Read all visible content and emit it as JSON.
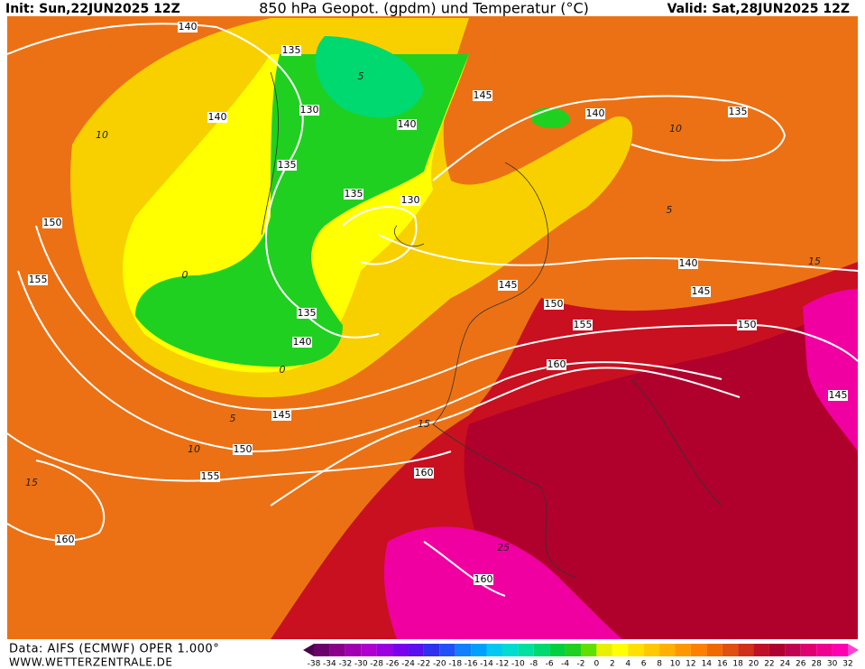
{
  "header": {
    "init": "Init: Sun,22JUN2025 12Z",
    "title": "850 hPa Geopot. (gpdm) und Temperatur (°C)",
    "valid": "Valid: Sat,28JUN2025 12Z"
  },
  "footer": {
    "source": "Data: AIFS (ECMWF) OPER 1.000°",
    "site": "WWW.WETTERZENTRALE.DE"
  },
  "legend": {
    "ticks": [
      -38,
      -34,
      -32,
      -30,
      -28,
      -26,
      -24,
      -22,
      -20,
      -18,
      -16,
      -14,
      -12,
      -10,
      -8,
      -6,
      -4,
      -2,
      0,
      2,
      4,
      6,
      8,
      10,
      12,
      14,
      16,
      18,
      20,
      22,
      24,
      26,
      28,
      30,
      32
    ],
    "colors": [
      "#4a004a",
      "#6a006a",
      "#8a008a",
      "#a000b0",
      "#b000d0",
      "#9a00e0",
      "#7a00ee",
      "#5a10f0",
      "#3030f0",
      "#2050f8",
      "#1080ff",
      "#00a0ff",
      "#00c8f0",
      "#00dcd0",
      "#00e0a0",
      "#00d870",
      "#00d040",
      "#20d020",
      "#60e000",
      "#e8f000",
      "#ffff00",
      "#ffe000",
      "#ffc800",
      "#ffb000",
      "#ff9800",
      "#ff8000",
      "#f06800",
      "#e05010",
      "#d03018",
      "#c01028",
      "#b00030",
      "#c00050",
      "#e00070",
      "#f00090",
      "#ff00b0",
      "#ff40d0"
    ]
  },
  "contour_labels": {
    "geopotential": [
      140,
      135,
      140,
      130,
      135,
      140,
      145,
      135,
      130,
      140,
      135,
      150,
      155,
      135,
      140,
      145,
      150,
      155,
      140,
      145,
      150,
      160,
      145,
      145,
      150,
      155,
      160,
      160,
      160
    ],
    "temperature": [
      10,
      5,
      10,
      5,
      0,
      0,
      5,
      10,
      15,
      15,
      15,
      25
    ]
  }
}
